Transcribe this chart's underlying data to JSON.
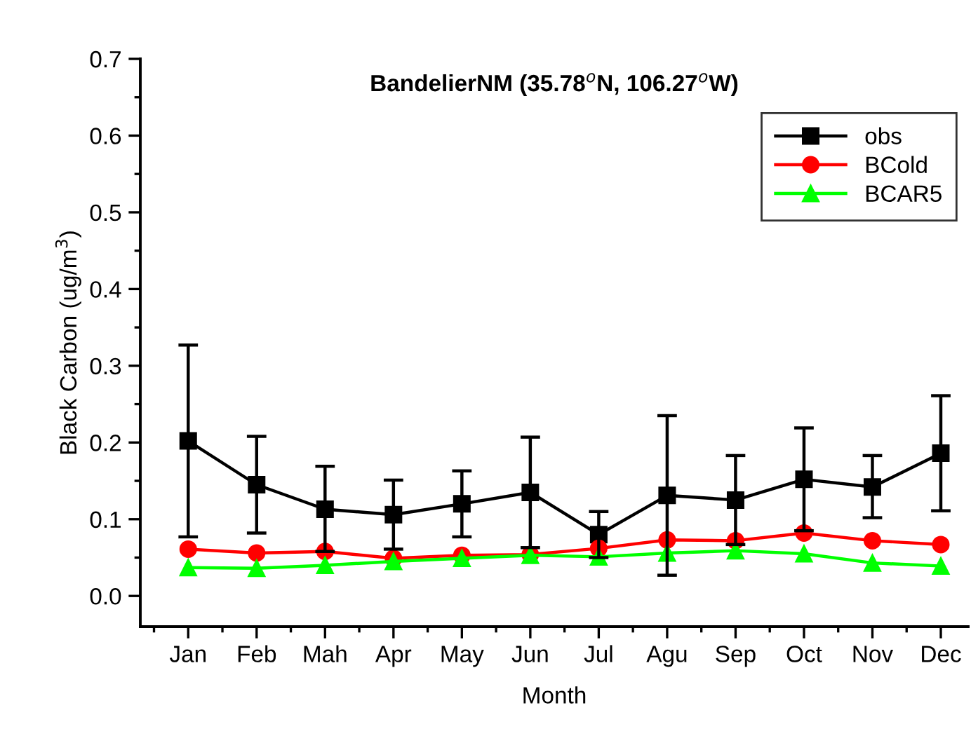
{
  "chart_data": {
    "type": "line",
    "title": "BandelierNM (35.78$^{o}$N, 106.27$^{o}$W)",
    "xlabel": "Month",
    "ylabel": "Black Carbon (ug/m$^{3}$)",
    "categories": [
      "Jan",
      "Feb",
      "Mah",
      "Apr",
      "May",
      "Jun",
      "Jul",
      "Agu",
      "Sep",
      "Oct",
      "Nov",
      "Dec"
    ],
    "series": [
      {
        "name": "obs",
        "color": "#000000",
        "marker": "square",
        "values": [
          0.202,
          0.145,
          0.113,
          0.106,
          0.12,
          0.135,
          0.08,
          0.131,
          0.125,
          0.152,
          0.142,
          0.186
        ],
        "errors": [
          [
            0.077,
            0.327
          ],
          [
            0.082,
            0.208
          ],
          [
            0.058,
            0.169
          ],
          [
            0.061,
            0.151
          ],
          [
            0.077,
            0.163
          ],
          [
            0.063,
            0.207
          ],
          [
            0.05,
            0.11
          ],
          [
            0.027,
            0.235
          ],
          [
            0.067,
            0.183
          ],
          [
            0.085,
            0.219
          ],
          [
            0.102,
            0.183
          ],
          [
            0.111,
            0.261
          ]
        ]
      },
      {
        "name": "BCold",
        "color": "#ff0000",
        "marker": "circle",
        "values": [
          0.061,
          0.056,
          0.058,
          0.049,
          0.053,
          0.054,
          0.062,
          0.073,
          0.072,
          0.082,
          0.072,
          0.067
        ]
      },
      {
        "name": "BCAR5",
        "color": "#00ff00",
        "marker": "triangle",
        "values": [
          0.037,
          0.036,
          0.04,
          0.045,
          0.049,
          0.053,
          0.051,
          0.056,
          0.059,
          0.055,
          0.043,
          0.039
        ]
      }
    ],
    "ylim": [
      -0.04,
      0.7
    ],
    "yticks": [
      {
        "value": 0,
        "label": "0.0"
      },
      0.1,
      0.2,
      0.3,
      0.4,
      0.5,
      0.6,
      0.7
    ],
    "legend": "top right",
    "grid": false,
    "line_style": "solid"
  }
}
